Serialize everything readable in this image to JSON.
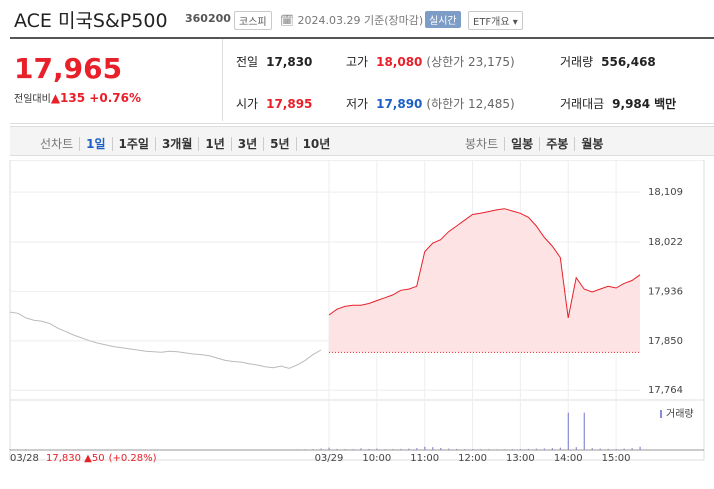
{
  "header": {
    "name": "ACE 미국S&P500",
    "code": "360200",
    "market": "코스피",
    "date": "2024.03.29",
    "basis": "기준(장마감)",
    "realtime": "실시간",
    "etf": "ETF개요"
  },
  "quote": {
    "price": "17,965",
    "change_label": "전일대비",
    "change": "135",
    "pct": "+0.76%"
  },
  "stats": [
    {
      "label": "전일",
      "value": "17,830"
    },
    {
      "label": "고가",
      "value": "18,080",
      "extra": "(상한가 23,175)"
    },
    {
      "label": "거래량",
      "value": "556,468"
    },
    {
      "label": "시가",
      "value": "17,895"
    },
    {
      "label": "저가",
      "value": "17,890",
      "extra": "(하한가 12,485)"
    },
    {
      "label": "거래대금",
      "value": "9,984",
      "unit": "백만"
    }
  ],
  "tabs": {
    "line_label": "선차트",
    "line": [
      "1일",
      "1주일",
      "3개월",
      "1년",
      "3년",
      "5년",
      "10년"
    ],
    "candle_label": "봉차트",
    "candle": [
      "일봉",
      "주봉",
      "월봉"
    ]
  },
  "chart_data": {
    "type": "line",
    "categories": [
      null,
      null,
      null,
      null,
      null,
      null,
      null,
      null,
      null,
      null,
      null,
      null,
      null,
      null,
      null,
      null,
      null,
      null,
      null,
      null,
      null,
      null,
      null,
      null,
      null,
      null,
      null,
      null,
      null,
      null,
      null,
      null,
      null,
      null,
      null,
      null,
      null,
      null,
      null,
      null,
      "03/29",
      null,
      null,
      null,
      null,
      null,
      "10:00",
      null,
      null,
      null,
      null,
      null,
      "11:00",
      null,
      null,
      null,
      null,
      null,
      "12:00",
      null,
      null,
      null,
      null,
      null,
      "13:00",
      null,
      null,
      null,
      null,
      null,
      "14:00",
      null,
      null,
      null,
      null,
      null,
      "15:00",
      null,
      null,
      null
    ],
    "series": [
      {
        "color": "#bbbbbb",
        "values": [
          17900,
          17898,
          17890,
          17886,
          17884,
          17880,
          17872,
          17866,
          17860,
          17855,
          17850,
          17846,
          17843,
          17840,
          17838,
          17836,
          17834,
          17832,
          17831,
          17830,
          17832,
          17831,
          17829,
          17827,
          17826,
          17824,
          17820,
          17816,
          17814,
          17813,
          17810,
          17808,
          17805,
          17803,
          17806,
          17802,
          17808,
          17816,
          17826,
          17834,
          null,
          null,
          null,
          null,
          null,
          null,
          null,
          null,
          null,
          null,
          null,
          null,
          null,
          null,
          null,
          null,
          null,
          null,
          null,
          null,
          null,
          null,
          null,
          null,
          null,
          null,
          null,
          null,
          null,
          null,
          null,
          null,
          null,
          null,
          null,
          null,
          null,
          null,
          null,
          null
        ]
      },
      {
        "color": "#e8202a",
        "fill": "#fde3e4",
        "values": [
          null,
          null,
          null,
          null,
          null,
          null,
          null,
          null,
          null,
          null,
          null,
          null,
          null,
          null,
          null,
          null,
          null,
          null,
          null,
          null,
          null,
          null,
          null,
          null,
          null,
          null,
          null,
          null,
          null,
          null,
          null,
          null,
          null,
          null,
          null,
          null,
          null,
          null,
          null,
          null,
          17895,
          17905,
          17910,
          17912,
          17912,
          17915,
          17920,
          17925,
          17930,
          17938,
          17940,
          17945,
          18005,
          18020,
          18026,
          18040,
          18050,
          18060,
          18070,
          18072,
          18075,
          18078,
          18080,
          18076,
          18072,
          18065,
          18050,
          18030,
          18015,
          17995,
          17890,
          17960,
          17940,
          17935,
          17940,
          17945,
          17942,
          17950,
          17955,
          17965
        ]
      }
    ],
    "baseline": 17830,
    "ylim": [
      17747,
      18130
    ],
    "yticks": [
      {
        "value": 18109,
        "label": "18,109"
      },
      {
        "value": 18022,
        "label": "18,022"
      },
      {
        "value": 17936,
        "label": "17,936"
      },
      {
        "value": 17850,
        "label": "17,850"
      },
      {
        "value": 17764,
        "label": "17,764"
      }
    ],
    "volume": {
      "name": "거래량",
      "color": "#8a8ad8",
      "vlim": [
        0,
        45000
      ],
      "values": [
        800,
        600,
        700,
        500,
        600,
        400,
        500,
        600,
        400,
        500,
        300,
        400,
        500,
        400,
        300,
        400,
        500,
        300,
        400,
        300,
        400,
        500,
        300,
        400,
        300,
        500,
        400,
        300,
        400,
        500,
        300,
        400,
        600,
        500,
        400,
        600,
        700,
        800,
        900,
        1500,
        2500,
        1200,
        1000,
        900,
        1800,
        1100,
        1500,
        900,
        1000,
        1200,
        1400,
        2000,
        3500,
        3000,
        2200,
        1500,
        1200,
        900,
        1000,
        800,
        900,
        700,
        800,
        900,
        1000,
        1200,
        1400,
        1600,
        2000,
        2500,
        40000,
        3000,
        40000,
        2000,
        1500,
        1200,
        1000,
        1500,
        2000,
        3500
      ]
    },
    "prev_day": {
      "date": "03/28",
      "price": "17,830",
      "change": "50",
      "pct": "(+0.28%)"
    }
  }
}
